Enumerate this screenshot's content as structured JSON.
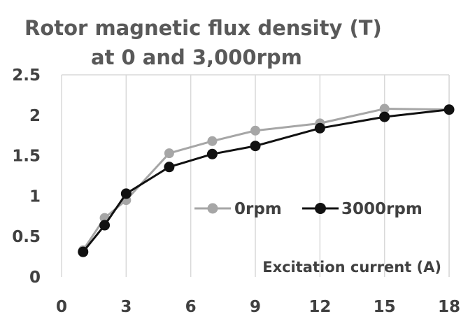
{
  "chart_data": {
    "type": "line",
    "title_line1": "Rotor magnetic flux density (T)",
    "title_line2": "at 0 and 3,000rpm",
    "xlabel": "Excitation current (A)",
    "ylabel": "",
    "xlim": [
      0,
      18
    ],
    "ylim": [
      0,
      2.5
    ],
    "x_ticks": [
      "0",
      "3",
      "6",
      "9",
      "12",
      "15",
      "18"
    ],
    "y_ticks": [
      "0",
      "0.5",
      "1",
      "1.5",
      "2",
      "2.5"
    ],
    "grid": "vertical",
    "legend_position": "center-right",
    "series": [
      {
        "name": "0rpm",
        "color": "#a6a6a6",
        "x": [
          1,
          2,
          3,
          5,
          7,
          9,
          12,
          15,
          18
        ],
        "y": [
          0.33,
          0.73,
          0.95,
          1.53,
          1.68,
          1.81,
          1.9,
          2.08,
          2.07
        ]
      },
      {
        "name": "3000rpm",
        "color": "#111111",
        "x": [
          1,
          2,
          3,
          5,
          7,
          9,
          12,
          15,
          18
        ],
        "y": [
          0.31,
          0.64,
          1.03,
          1.36,
          1.52,
          1.62,
          1.84,
          1.98,
          2.07
        ]
      }
    ]
  }
}
